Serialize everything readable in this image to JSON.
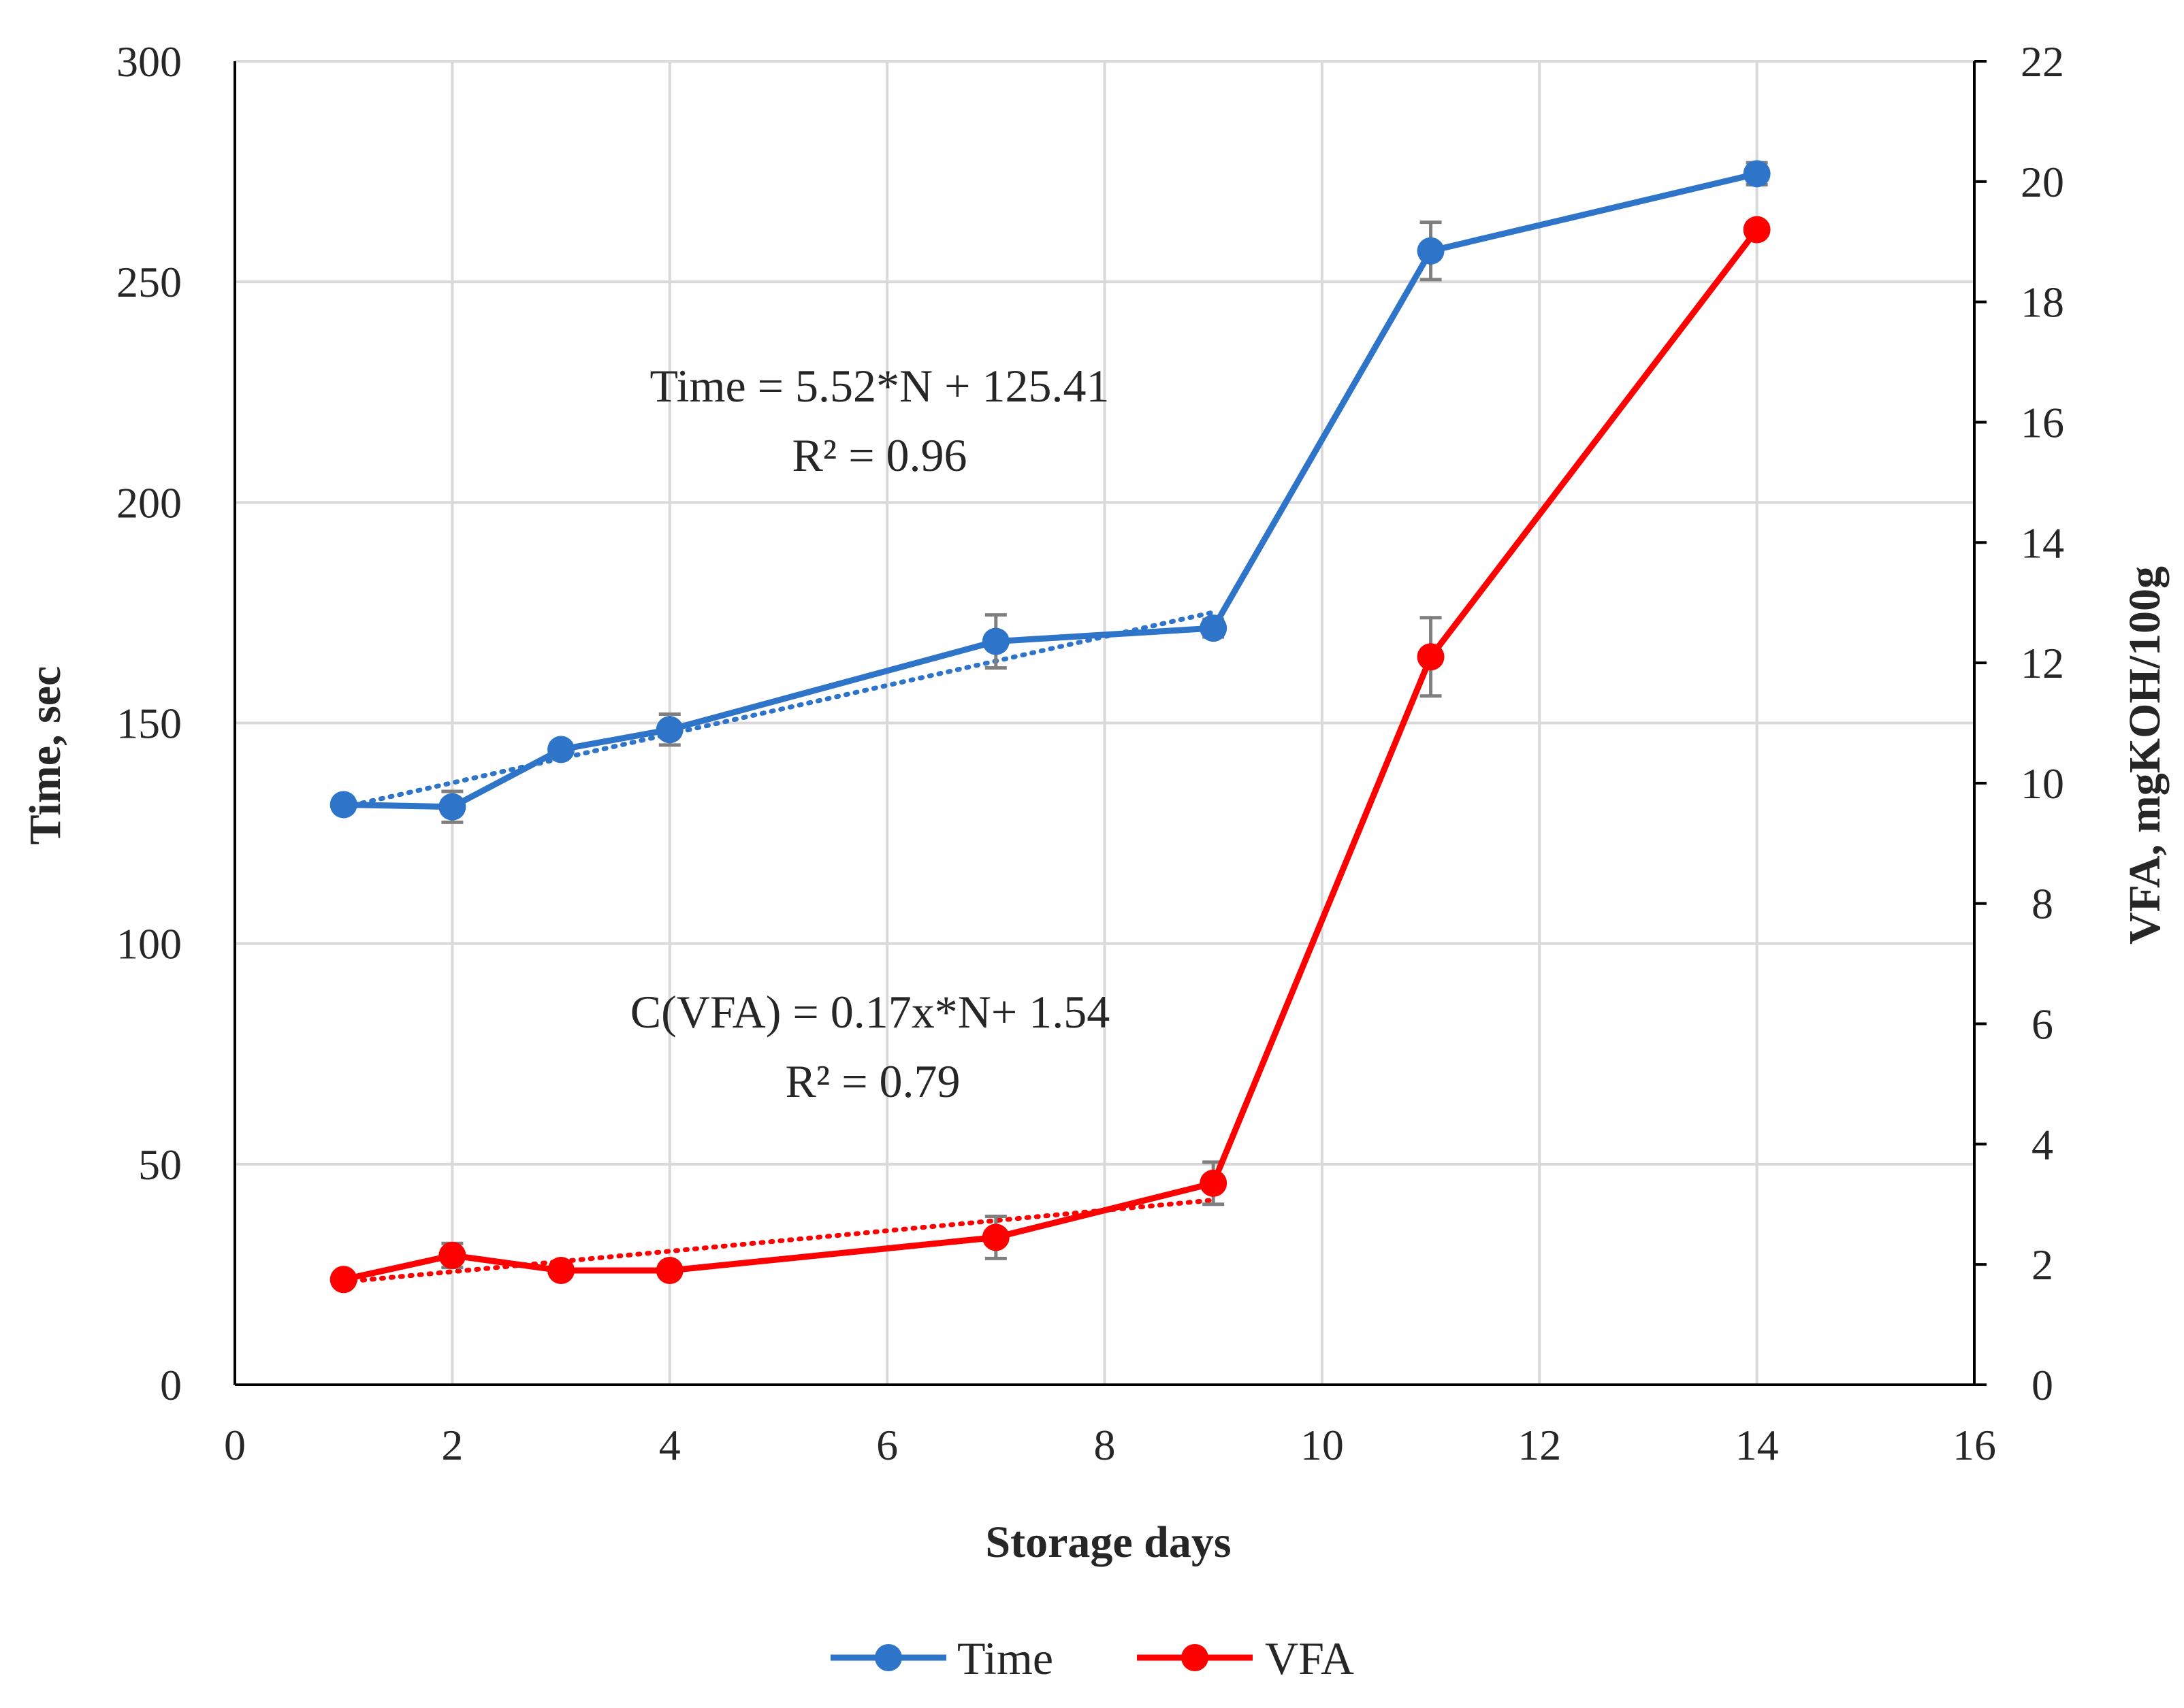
{
  "chart_data": {
    "type": "line",
    "xlabel": "Storage days",
    "ylabel_left": "Time, sec",
    "ylabel_right": "VFA, mgKOH/100g",
    "xlim": [
      0,
      16
    ],
    "xticks": [
      0,
      2,
      4,
      6,
      8,
      10,
      12,
      14,
      16
    ],
    "ylim_left": [
      0,
      300
    ],
    "yticks_left": [
      0,
      50,
      100,
      150,
      200,
      250,
      300
    ],
    "ylim_right": [
      0,
      22
    ],
    "yticks_right": [
      0,
      2,
      4,
      6,
      8,
      10,
      12,
      14,
      16,
      18,
      20,
      22
    ],
    "grid": true,
    "legend_position": "bottom",
    "series": [
      {
        "name": "Time",
        "axis": "left",
        "color": "#2e75c9",
        "x": [
          1,
          2,
          3,
          4,
          7,
          9,
          11,
          14
        ],
        "values": [
          131.5,
          131,
          144,
          148.5,
          168.5,
          171.5,
          257,
          274.5
        ],
        "errors": [
          1.5,
          3.5,
          1.5,
          3.5,
          6,
          2,
          6.5,
          2.5
        ],
        "trendline": {
          "slope": 5.52,
          "intercept": 125.41
        }
      },
      {
        "name": "VFA",
        "axis": "right",
        "color": "#ff0000",
        "x": [
          1,
          2,
          3,
          4,
          7,
          9,
          11,
          14
        ],
        "values": [
          1.75,
          2.15,
          1.9,
          1.9,
          2.45,
          3.35,
          12.1,
          19.2
        ],
        "errors": [
          0.05,
          0.2,
          0.1,
          0.1,
          0.35,
          0.35,
          0.65,
          0.1
        ],
        "trendline": {
          "slope": 0.17,
          "intercept": 1.54
        }
      }
    ],
    "annotations": {
      "time_equation": "Time = 5.52*N + 125.41",
      "time_r2": "R² = 0.96",
      "vfa_equation": "C(VFA) = 0.17x*N+ 1.54",
      "vfa_r2": "R² = 0.79"
    }
  }
}
